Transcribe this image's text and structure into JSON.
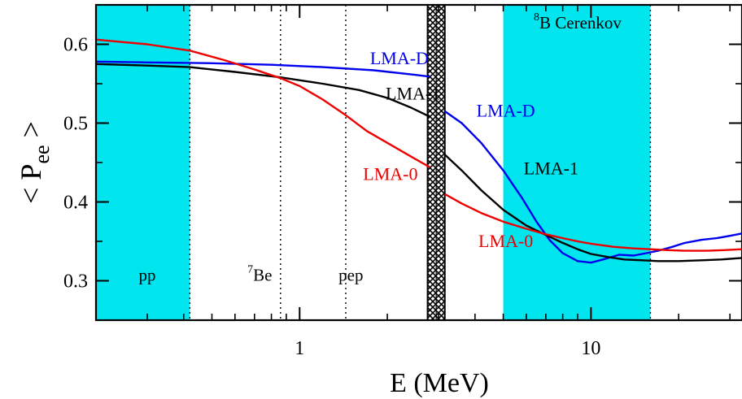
{
  "chart_data": {
    "type": "line",
    "title": "",
    "xlabel": "E (MeV)",
    "ylabel": {
      "main": "P",
      "sub": "ee"
    },
    "xscale": "log",
    "xlim": [
      0.2,
      33
    ],
    "ylim": [
      0.25,
      0.65
    ],
    "x_ticks": [
      {
        "value": 1,
        "label": "1"
      },
      {
        "value": 10,
        "label": "10"
      }
    ],
    "y_ticks": [
      {
        "value": 0.3,
        "label": "0.3"
      },
      {
        "value": 0.4,
        "label": "0.4"
      },
      {
        "value": 0.5,
        "label": "0.5"
      },
      {
        "value": 0.6,
        "label": "0.6"
      }
    ],
    "shaded_bands": [
      {
        "x_from": 0.2,
        "x_to": 0.42,
        "color": "#00e5ee"
      },
      {
        "x_from": 5.0,
        "x_to": 16.0,
        "color": "#00e5ee"
      }
    ],
    "vertical_dotted_lines": [
      0.42,
      0.86,
      1.44,
      16.0
    ],
    "gap_band": {
      "x_from": 2.75,
      "x_to": 3.15
    },
    "region_labels": [
      {
        "text": "pp",
        "x": 0.3,
        "y": 0.3
      },
      {
        "sup": "7",
        "text": "Be",
        "x": 0.73,
        "y": 0.3
      },
      {
        "text": "pep",
        "x": 1.5,
        "y": 0.3
      },
      {
        "sup": "8",
        "text": "B  Cerenkov",
        "x": 9.0,
        "y": 0.62
      }
    ],
    "series_labels": [
      {
        "text": "LMA-D",
        "x": 2.2,
        "y": 0.575,
        "color": "#0000ee"
      },
      {
        "text": "LMA-1",
        "x": 2.45,
        "y": 0.53,
        "color": "#000000"
      },
      {
        "text": "LMA-0",
        "x": 2.05,
        "y": 0.428,
        "color": "#ee0000"
      },
      {
        "text": "LMA-D",
        "x": 5.1,
        "y": 0.508,
        "color": "#0000ee"
      },
      {
        "text": "LMA-1",
        "x": 7.3,
        "y": 0.435,
        "color": "#000000"
      },
      {
        "text": "LMA-0",
        "x": 5.1,
        "y": 0.343,
        "color": "#ee0000"
      }
    ],
    "series": [
      {
        "color": "#0000ee",
        "segments": [
          {
            "x": [
              0.2,
              0.3,
              0.5,
              0.8,
              1.2,
              1.8,
              2.4,
              2.8
            ],
            "y": [
              0.578,
              0.577,
              0.576,
              0.574,
              0.571,
              0.567,
              0.562,
              0.559
            ]
          },
          {
            "x": [
              3.15,
              3.6,
              4.2,
              5.0,
              5.8,
              6.5,
              7.2,
              8.0,
              9.0,
              10.0,
              11.0,
              12.5,
              14.0,
              15.5,
              17.0,
              19.0,
              21.0,
              24.0,
              27.0,
              30.0,
              33.0
            ],
            "y": [
              0.515,
              0.5,
              0.475,
              0.44,
              0.405,
              0.375,
              0.352,
              0.335,
              0.325,
              0.323,
              0.327,
              0.333,
              0.332,
              0.335,
              0.338,
              0.343,
              0.348,
              0.352,
              0.354,
              0.357,
              0.36
            ]
          }
        ]
      },
      {
        "color": "#000000",
        "segments": [
          {
            "x": [
              0.2,
              0.3,
              0.42,
              0.6,
              0.86,
              1.2,
              1.6,
              2.0,
              2.4,
              2.8
            ],
            "y": [
              0.575,
              0.573,
              0.571,
              0.565,
              0.558,
              0.55,
              0.542,
              0.532,
              0.52,
              0.508
            ]
          },
          {
            "x": [
              3.15,
              3.6,
              4.2,
              5.0,
              6.0,
              7.0,
              8.0,
              9.0,
              10.0,
              11.5,
              13.0,
              15.0,
              17.0,
              20.0,
              24.0,
              28.0,
              33.0
            ],
            "y": [
              0.46,
              0.44,
              0.415,
              0.39,
              0.37,
              0.358,
              0.348,
              0.34,
              0.334,
              0.33,
              0.327,
              0.326,
              0.325,
              0.325,
              0.326,
              0.327,
              0.329
            ]
          }
        ]
      },
      {
        "color": "#ee0000",
        "segments": [
          {
            "x": [
              0.2,
              0.3,
              0.42,
              0.55,
              0.7,
              0.86,
              1.0,
              1.2,
              1.44,
              1.7,
              2.0,
              2.4,
              2.8
            ],
            "y": [
              0.606,
              0.6,
              0.592,
              0.58,
              0.568,
              0.557,
              0.547,
              0.53,
              0.51,
              0.49,
              0.475,
              0.458,
              0.444
            ]
          },
          {
            "x": [
              3.15,
              3.6,
              4.2,
              5.0,
              6.0,
              7.0,
              8.0,
              9.0,
              10.0,
              12.0,
              14.0,
              16.0,
              18.0,
              21.0,
              25.0,
              29.0,
              33.0
            ],
            "y": [
              0.41,
              0.398,
              0.386,
              0.375,
              0.366,
              0.359,
              0.354,
              0.35,
              0.347,
              0.343,
              0.341,
              0.34,
              0.339,
              0.338,
              0.338,
              0.339,
              0.34
            ]
          }
        ]
      }
    ]
  }
}
